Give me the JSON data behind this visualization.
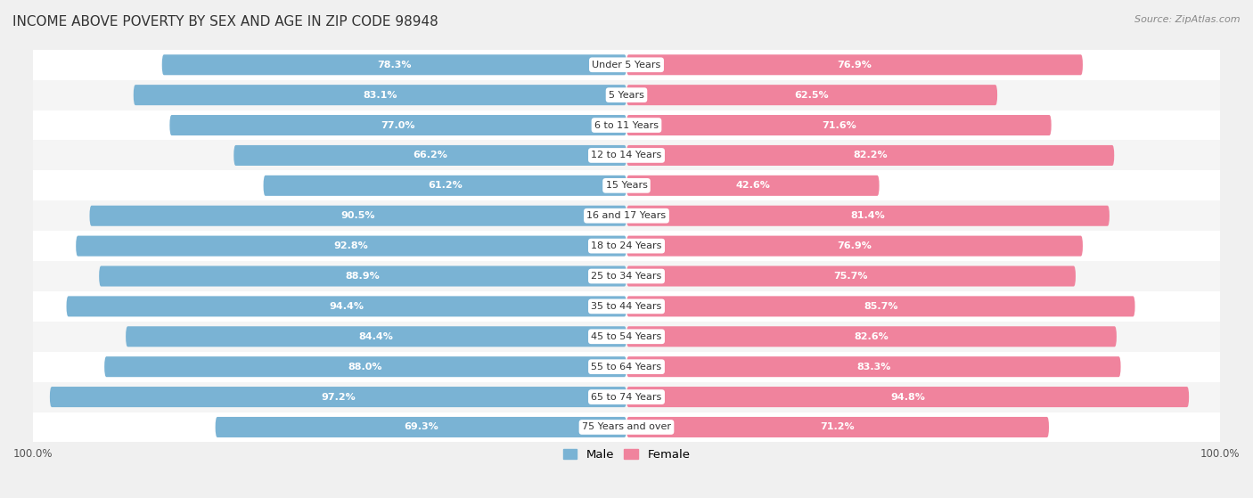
{
  "title": "INCOME ABOVE POVERTY BY SEX AND AGE IN ZIP CODE 98948",
  "source": "Source: ZipAtlas.com",
  "categories": [
    "Under 5 Years",
    "5 Years",
    "6 to 11 Years",
    "12 to 14 Years",
    "15 Years",
    "16 and 17 Years",
    "18 to 24 Years",
    "25 to 34 Years",
    "35 to 44 Years",
    "45 to 54 Years",
    "55 to 64 Years",
    "65 to 74 Years",
    "75 Years and over"
  ],
  "male": [
    78.3,
    83.1,
    77.0,
    66.2,
    61.2,
    90.5,
    92.8,
    88.9,
    94.4,
    84.4,
    88.0,
    97.2,
    69.3
  ],
  "female": [
    76.9,
    62.5,
    71.6,
    82.2,
    42.6,
    81.4,
    76.9,
    75.7,
    85.7,
    82.6,
    83.3,
    94.8,
    71.2
  ],
  "male_color": "#7ab3d4",
  "female_color": "#f0839d",
  "male_label": "Male",
  "female_label": "Female",
  "background_color": "#f0f0f0",
  "bar_background_color": "#ffffff",
  "row_bg_even": "#f5f5f5",
  "row_bg_odd": "#ffffff",
  "title_fontsize": 11,
  "source_fontsize": 8,
  "label_fontsize": 8,
  "tick_fontsize": 8.5,
  "legend_fontsize": 9.5
}
